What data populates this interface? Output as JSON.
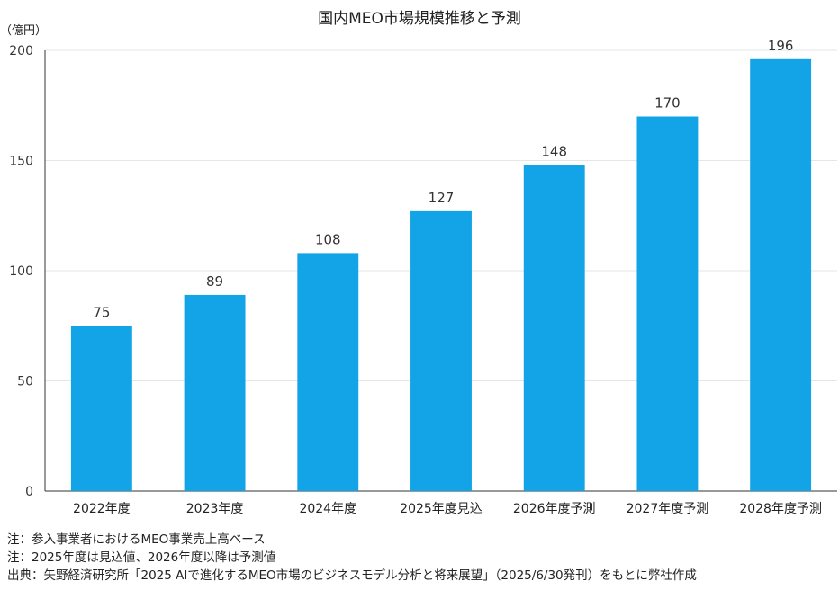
{
  "chart_data": {
    "type": "bar",
    "title": "国内MEO市場規模推移と予測",
    "ylabel": "（億円）",
    "xlabel": "",
    "categories": [
      "2022年度",
      "2023年度",
      "2024年度",
      "2025年度見込",
      "2026年度予測",
      "2027年度予測",
      "2028年度予測"
    ],
    "values": [
      75,
      89,
      108,
      127,
      148,
      170,
      196
    ],
    "ylim": [
      0,
      200
    ],
    "yticks": [
      0,
      50,
      100,
      150,
      200
    ],
    "grid": true,
    "bar_color": "#12a4e6",
    "data_labels": true
  },
  "notes": [
    "注：参入事業者におけるMEO事業売上高ベース",
    "注：2025年度は見込値、2026年度以降は予測値",
    "出典：矢野経済研究所「2025 AIで進化するMEO市場のビジネスモデル分析と将来展望」（2025/6/30発刊）をもとに弊社作成"
  ]
}
